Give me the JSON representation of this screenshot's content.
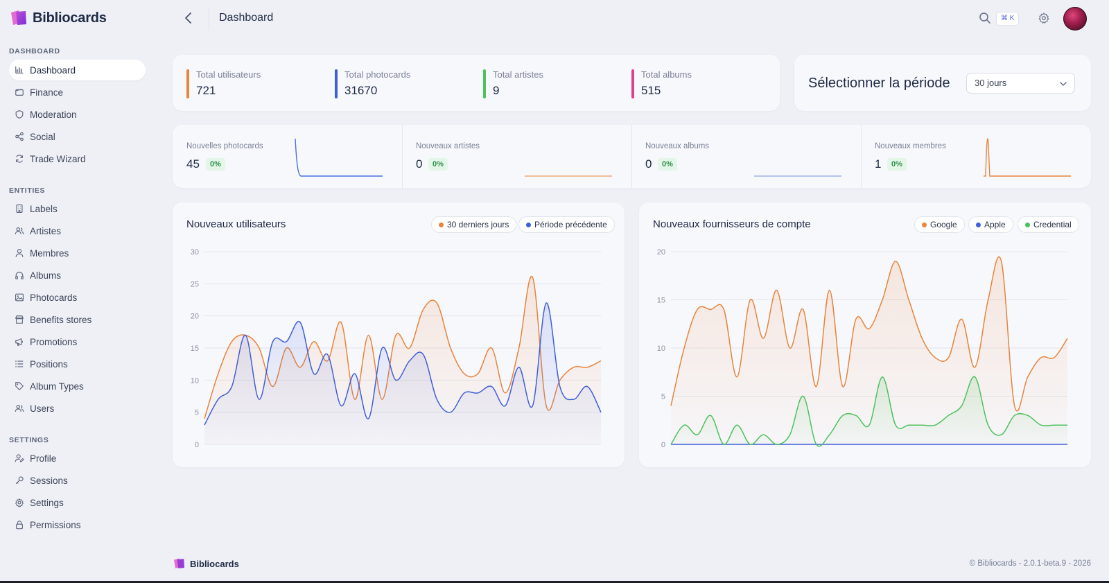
{
  "app": {
    "name": "Bibliocards"
  },
  "header": {
    "title": "Dashboard",
    "shortcut": "⌘ K"
  },
  "sidebar": {
    "sections": [
      {
        "title": "DASHBOARD",
        "items": [
          {
            "label": "Dashboard",
            "icon": "bar-chart-icon",
            "active": true
          },
          {
            "label": "Finance",
            "icon": "wallet-icon"
          },
          {
            "label": "Moderation",
            "icon": "shield-icon"
          },
          {
            "label": "Social",
            "icon": "share-icon"
          },
          {
            "label": "Trade Wizard",
            "icon": "refresh-icon"
          }
        ]
      },
      {
        "title": "ENTITIES",
        "items": [
          {
            "label": "Labels",
            "icon": "building-icon"
          },
          {
            "label": "Artistes",
            "icon": "users-icon"
          },
          {
            "label": "Membres",
            "icon": "user-icon"
          },
          {
            "label": "Albums",
            "icon": "headphones-icon"
          },
          {
            "label": "Photocards",
            "icon": "image-icon"
          },
          {
            "label": "Benefits stores",
            "icon": "store-icon"
          },
          {
            "label": "Promotions",
            "icon": "megaphone-icon"
          },
          {
            "label": "Positions",
            "icon": "list-icon"
          },
          {
            "label": "Album Types",
            "icon": "tag-icon"
          },
          {
            "label": "Users",
            "icon": "users-icon"
          }
        ]
      },
      {
        "title": "SETTINGS",
        "items": [
          {
            "label": "Profile",
            "icon": "user-edit-icon"
          },
          {
            "label": "Sessions",
            "icon": "key-icon"
          },
          {
            "label": "Settings",
            "icon": "gear-icon"
          },
          {
            "label": "Permissions",
            "icon": "lock-icon"
          }
        ]
      }
    ]
  },
  "totals": [
    {
      "label": "Total utilisateurs",
      "value": "721",
      "color": "#e8843c"
    },
    {
      "label": "Total photocards",
      "value": "31670",
      "color": "#3f5fd8"
    },
    {
      "label": "Total artistes",
      "value": "9",
      "color": "#4cc15c"
    },
    {
      "label": "Total albums",
      "value": "515",
      "color": "#e0408a"
    }
  ],
  "period": {
    "title": "Sélectionner la période",
    "selected": "30 jours"
  },
  "new_items": [
    {
      "label": "Nouvelles photocards",
      "value": "45",
      "change": "0%",
      "color": "#4a6fe0"
    },
    {
      "label": "Nouveaux artistes",
      "value": "0",
      "change": "0%",
      "color": "#f0a77a"
    },
    {
      "label": "Nouveaux albums",
      "value": "0",
      "change": "0%",
      "color": "#9fb0e6"
    },
    {
      "label": "Nouveaux membres",
      "value": "1",
      "change": "0%",
      "color": "#e8843c"
    }
  ],
  "chart_data": [
    {
      "type": "area",
      "title": "Nouveaux utilisateurs",
      "ylim": [
        0,
        30
      ],
      "yticks": [
        "0",
        "5",
        "10",
        "15",
        "20",
        "25",
        "30"
      ],
      "grid": true,
      "legend_position": "top-right",
      "series": [
        {
          "name": "30 derniers jours",
          "color": "#e8843c",
          "values": [
            4,
            11,
            16,
            17,
            15,
            9,
            15,
            12,
            16,
            13,
            19,
            7,
            17,
            7,
            17,
            15,
            21,
            22,
            15,
            11,
            11,
            15,
            8,
            15,
            26,
            6,
            10,
            12,
            12,
            13
          ]
        },
        {
          "name": "Période précédente",
          "color": "#3f5fd8",
          "values": [
            3,
            7,
            9,
            17,
            7,
            16,
            16,
            19,
            11,
            14,
            6,
            11,
            4,
            15,
            10,
            13,
            14,
            7,
            5,
            8,
            8,
            9,
            6,
            12,
            6,
            22,
            9,
            7,
            9,
            5
          ]
        }
      ]
    },
    {
      "type": "area",
      "title": "Nouveaux fournisseurs de compte",
      "ylim": [
        0,
        20
      ],
      "yticks": [
        "0",
        "5",
        "10",
        "15",
        "20"
      ],
      "grid": true,
      "legend_position": "top-right",
      "series": [
        {
          "name": "Google",
          "color": "#e8843c",
          "values": [
            4,
            10,
            14,
            14,
            14,
            7,
            15,
            11,
            16,
            10,
            14,
            6,
            16,
            6,
            13,
            12,
            15,
            19,
            15,
            11,
            9,
            9,
            13,
            8,
            15,
            19,
            4,
            7,
            9,
            9,
            11
          ]
        },
        {
          "name": "Apple",
          "color": "#3f5fd8",
          "values": [
            0,
            0,
            0,
            0,
            0,
            0,
            0,
            0,
            0,
            0,
            0,
            0,
            0,
            0,
            0,
            0,
            0,
            0,
            0,
            0,
            0,
            0,
            0,
            0,
            0,
            0,
            0,
            0,
            0,
            0,
            0
          ]
        },
        {
          "name": "Credential",
          "color": "#4cc15c",
          "values": [
            0,
            2,
            1,
            3,
            0,
            2,
            0,
            1,
            0,
            1,
            5,
            0,
            1,
            3,
            3,
            2,
            7,
            2,
            2,
            2,
            2,
            3,
            4,
            7,
            2,
            1,
            3,
            3,
            2,
            2,
            2
          ]
        }
      ]
    }
  ],
  "footer": {
    "brand": "Bibliocards",
    "copyright": "© Bibliocards - 2.0.1-beta.9 - 2026"
  }
}
